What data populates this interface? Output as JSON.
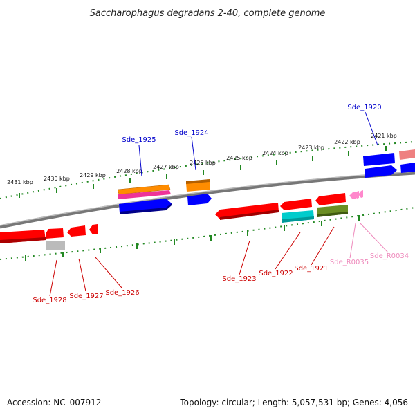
{
  "title": "Saccharophagus degradans 2-40, complete genome",
  "footer": {
    "accession": "Accession: NC_007912",
    "topology": "Topology: circular; Length: 5,057,531 bp; Genes: 4,056"
  },
  "scale_labels": [
    "2431 kbp",
    "2430 kbp",
    "2429 kbp",
    "2428 kbp",
    "2427 kbp",
    "2426 kbp",
    "2425 kbp",
    "2424 kbp",
    "2423 kbp",
    "2422 kbp",
    "2421 kbp"
  ],
  "gene_labels": {
    "top": [
      "Sde_1925",
      "Sde_1924",
      "Sde_1920"
    ],
    "bottom": [
      "Sde_1928",
      "Sde_1927",
      "Sde_1926",
      "Sde_1923",
      "Sde_1922",
      "Sde_1921",
      "Sde_R0035",
      "Sde_R0034"
    ]
  },
  "colors": {
    "cds_forward": "#0000ff",
    "cds_reverse": "#ff0000",
    "rna": "#ff99cc",
    "label_blue": "#0000cc",
    "label_red": "#cc0000",
    "label_pink": "#ee88bb",
    "scale": "#228822",
    "backbone": "#808080"
  }
}
